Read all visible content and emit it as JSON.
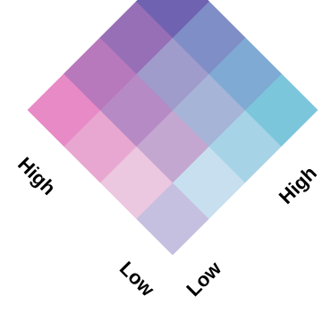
{
  "chart_data": {
    "type": "heatmap",
    "title": "",
    "grid_size": 4,
    "axes": {
      "left": {
        "low_label": "Low",
        "high_label": "High"
      },
      "right": {
        "low_label": "Low",
        "high_label": "High"
      }
    },
    "cells": [
      {
        "left_level": 0,
        "right_level": 0,
        "color": "#c5bfe0"
      },
      {
        "left_level": 0,
        "right_level": 1,
        "color": "#c7dfee"
      },
      {
        "left_level": 0,
        "right_level": 2,
        "color": "#a7d3e6"
      },
      {
        "left_level": 0,
        "right_level": 3,
        "color": "#7cc6dc"
      },
      {
        "left_level": 1,
        "right_level": 0,
        "color": "#ecc7e0"
      },
      {
        "left_level": 1,
        "right_level": 1,
        "color": "#c3a7d0"
      },
      {
        "left_level": 1,
        "right_level": 2,
        "color": "#a6b4d8"
      },
      {
        "left_level": 1,
        "right_level": 3,
        "color": "#7eaad4"
      },
      {
        "left_level": 2,
        "right_level": 0,
        "color": "#e8a7d0"
      },
      {
        "left_level": 2,
        "right_level": 1,
        "color": "#b68ac4"
      },
      {
        "left_level": 2,
        "right_level": 2,
        "color": "#9f9ccc"
      },
      {
        "left_level": 2,
        "right_level": 3,
        "color": "#7f8ec6"
      },
      {
        "left_level": 3,
        "right_level": 0,
        "color": "#e88ac6"
      },
      {
        "left_level": 3,
        "right_level": 1,
        "color": "#b878bc"
      },
      {
        "left_level": 3,
        "right_level": 2,
        "color": "#976fb6"
      },
      {
        "left_level": 3,
        "right_level": 3,
        "color": "#6f62b0"
      }
    ]
  }
}
